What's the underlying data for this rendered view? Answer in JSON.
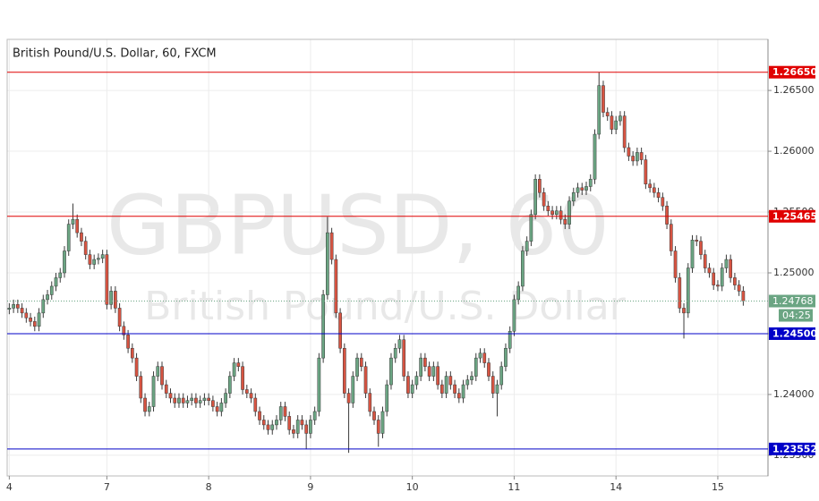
{
  "chart_data": {
    "type": "candlestick",
    "title": "British Pound/U.S. Dollar, 60, FXCM",
    "watermark": "GBPUSD, 60",
    "watermark_subtitle": "British Pound/U.S. Dollar",
    "categories": [
      "4",
      null,
      null,
      null,
      null,
      null,
      null,
      null,
      null,
      null,
      null,
      null,
      null,
      null,
      null,
      null,
      null,
      null,
      null,
      null,
      null,
      null,
      null,
      "7",
      null,
      null,
      null,
      null,
      null,
      null,
      null,
      null,
      null,
      null,
      null,
      null,
      null,
      null,
      null,
      null,
      null,
      null,
      null,
      null,
      null,
      null,
      null,
      "8",
      null,
      null,
      null,
      null,
      null,
      null,
      null,
      null,
      null,
      null,
      null,
      null,
      null,
      null,
      null,
      null,
      null,
      null,
      null,
      null,
      null,
      null,
      null,
      "9",
      null,
      null,
      null,
      null,
      null,
      null,
      null,
      null,
      null,
      null,
      null,
      null,
      null,
      null,
      null,
      null,
      null,
      null,
      null,
      null,
      null,
      null,
      null,
      "10",
      null,
      null,
      null,
      null,
      null,
      null,
      null,
      null,
      null,
      null,
      null,
      null,
      null,
      null,
      null,
      null,
      null,
      null,
      null,
      null,
      null,
      null,
      null,
      "11",
      null,
      null,
      null,
      null,
      null,
      null,
      null,
      null,
      null,
      null,
      null,
      null,
      null,
      null,
      null,
      null,
      null,
      null,
      null,
      null,
      null,
      null,
      null,
      "14",
      null,
      null,
      null,
      null,
      null,
      null,
      null,
      null,
      null,
      null,
      null,
      null,
      null,
      null,
      null,
      null,
      null,
      null,
      null,
      null,
      null,
      null,
      null,
      "15",
      null,
      null,
      null,
      null,
      null,
      null
    ],
    "open": [
      1.247,
      1.2471,
      1.2474,
      1.2471,
      1.2467,
      1.2463,
      1.246,
      1.2456,
      1.2467,
      1.2478,
      1.2482,
      1.2489,
      1.2496,
      1.25,
      1.2518,
      1.254,
      1.2544,
      1.2533,
      1.2526,
      1.2515,
      1.2507,
      1.2511,
      1.2512,
      1.2515,
      1.2474,
      1.2485,
      1.2471,
      1.2456,
      1.2449,
      1.2438,
      1.243,
      1.2415,
      1.2397,
      1.2386,
      1.239,
      1.2415,
      1.2423,
      1.2408,
      1.2401,
      1.2397,
      1.2393,
      1.2397,
      1.2393,
      1.2395,
      1.2397,
      1.2393,
      1.2395,
      1.2397,
      1.2395,
      1.239,
      1.2386,
      1.2393,
      1.2401,
      1.2415,
      1.2426,
      1.2423,
      1.2404,
      1.2401,
      1.2397,
      1.2386,
      1.2379,
      1.2375,
      1.2371,
      1.2375,
      1.2379,
      1.239,
      1.2382,
      1.2371,
      1.2368,
      1.2379,
      1.2375,
      1.2368,
      1.2379,
      1.2386,
      1.243,
      1.2482,
      1.2533,
      1.2511,
      1.2467,
      1.2438,
      1.2401,
      1.2393,
      1.2415,
      1.243,
      1.2423,
      1.2401,
      1.2386,
      1.2379,
      1.2368,
      1.2386,
      1.2408,
      1.243,
      1.2438,
      1.2445,
      1.2415,
      1.2401,
      1.2408,
      1.2415,
      1.243,
      1.2423,
      1.2415,
      1.2423,
      1.2408,
      1.2401,
      1.2415,
      1.2408,
      1.2401,
      1.2397,
      1.2408,
      1.2412,
      1.2415,
      1.243,
      1.2434,
      1.2426,
      1.2415,
      1.2401,
      1.2408,
      1.2423,
      1.2438,
      1.2452,
      1.2478,
      1.2489,
      1.2518,
      1.2526,
      1.2548,
      1.2577,
      1.2566,
      1.2555,
      1.2551,
      1.2548,
      1.2551,
      1.2544,
      1.254,
      1.2559,
      1.2566,
      1.257,
      1.2568,
      1.2571,
      1.2577,
      1.2614,
      1.2654,
      1.2632,
      1.2629,
      1.2618,
      1.2625,
      1.2629,
      1.2603,
      1.2596,
      1.2592,
      1.2599,
      1.2593,
      1.2573,
      1.257,
      1.2566,
      1.2562,
      1.2555,
      1.254,
      1.2518,
      1.2496,
      1.2471,
      1.2467,
      1.2504,
      1.2527,
      1.2526,
      1.2515,
      1.2504,
      1.25,
      1.249,
      1.2489,
      1.2504,
      1.2511,
      1.2496,
      1.249,
      1.2485
    ],
    "high": [
      1.2475,
      1.2478,
      1.2478,
      1.2475,
      1.2471,
      1.2467,
      1.2464,
      1.2471,
      1.2482,
      1.2486,
      1.2493,
      1.25,
      1.2504,
      1.2522,
      1.2544,
      1.2557,
      1.2548,
      1.2537,
      1.253,
      1.2519,
      1.2515,
      1.2516,
      1.2519,
      1.2519,
      1.2489,
      1.2489,
      1.2475,
      1.246,
      1.2453,
      1.2442,
      1.2434,
      1.2419,
      1.2401,
      1.2394,
      1.2419,
      1.2427,
      1.2427,
      1.2412,
      1.2405,
      1.2401,
      1.2401,
      1.2401,
      1.2399,
      1.2401,
      1.2401,
      1.2399,
      1.2401,
      1.2401,
      1.2399,
      1.2394,
      1.2397,
      1.2405,
      1.2419,
      1.243,
      1.243,
      1.2427,
      1.2408,
      1.2405,
      1.2401,
      1.239,
      1.2383,
      1.2379,
      1.2379,
      1.2383,
      1.2394,
      1.2394,
      1.2386,
      1.2375,
      1.2383,
      1.2383,
      1.2379,
      1.2383,
      1.239,
      1.2434,
      1.2486,
      1.2546,
      1.2537,
      1.2515,
      1.2471,
      1.2442,
      1.2405,
      1.2419,
      1.2434,
      1.2434,
      1.2427,
      1.2405,
      1.239,
      1.2383,
      1.239,
      1.2412,
      1.2434,
      1.2442,
      1.2449,
      1.2449,
      1.2419,
      1.2412,
      1.2419,
      1.2434,
      1.2434,
      1.2427,
      1.2427,
      1.2427,
      1.2412,
      1.2419,
      1.2419,
      1.2412,
      1.2405,
      1.2412,
      1.2416,
      1.2419,
      1.2434,
      1.2438,
      1.2438,
      1.243,
      1.2419,
      1.2412,
      1.2427,
      1.2442,
      1.2456,
      1.2482,
      1.2493,
      1.2522,
      1.253,
      1.2552,
      1.2581,
      1.2581,
      1.257,
      1.2559,
      1.2555,
      1.2555,
      1.2555,
      1.2548,
      1.2563,
      1.257,
      1.2574,
      1.2574,
      1.2575,
      1.2581,
      1.2618,
      1.2665,
      1.2658,
      1.2636,
      1.2633,
      1.2629,
      1.2633,
      1.2633,
      1.2607,
      1.26,
      1.2603,
      1.2603,
      1.2597,
      1.2577,
      1.2574,
      1.257,
      1.2566,
      1.2559,
      1.2544,
      1.2522,
      1.25,
      1.2475,
      1.2508,
      1.2531,
      1.2531,
      1.253,
      1.2519,
      1.2508,
      1.2504,
      1.2494,
      1.2508,
      1.2515,
      1.2515,
      1.25,
      1.2494,
      1.2489
    ],
    "low": [
      1.2466,
      1.2467,
      1.2467,
      1.2463,
      1.2459,
      1.2456,
      1.2452,
      1.2452,
      1.2463,
      1.2474,
      1.2478,
      1.2485,
      1.2492,
      1.2496,
      1.2514,
      1.2536,
      1.2529,
      1.2522,
      1.2511,
      1.2503,
      1.2503,
      1.2507,
      1.2508,
      1.247,
      1.247,
      1.2467,
      1.2452,
      1.2445,
      1.2434,
      1.2426,
      1.2411,
      1.2393,
      1.2382,
      1.2382,
      1.2386,
      1.2411,
      1.2404,
      1.2397,
      1.2393,
      1.2389,
      1.2389,
      1.2389,
      1.2389,
      1.2391,
      1.2389,
      1.2389,
      1.2391,
      1.2391,
      1.2386,
      1.2382,
      1.2382,
      1.2389,
      1.2397,
      1.2411,
      1.2419,
      1.24,
      1.2397,
      1.2393,
      1.2382,
      1.2375,
      1.2371,
      1.2367,
      1.2367,
      1.2371,
      1.2375,
      1.2378,
      1.2367,
      1.2364,
      1.2364,
      1.2371,
      1.2355,
      1.2364,
      1.2375,
      1.2382,
      1.2426,
      1.2478,
      1.2507,
      1.2463,
      1.2434,
      1.2397,
      1.2352,
      1.2389,
      1.2411,
      1.2419,
      1.2397,
      1.2382,
      1.2375,
      1.2357,
      1.2364,
      1.2382,
      1.2404,
      1.2426,
      1.2434,
      1.2411,
      1.2397,
      1.2397,
      1.2404,
      1.2411,
      1.2419,
      1.2411,
      1.2411,
      1.2404,
      1.2397,
      1.2397,
      1.2404,
      1.2397,
      1.2393,
      1.2393,
      1.2404,
      1.2408,
      1.2411,
      1.2426,
      1.2422,
      1.2411,
      1.2397,
      1.2382,
      1.2404,
      1.2419,
      1.2434,
      1.2448,
      1.2474,
      1.2485,
      1.2514,
      1.2522,
      1.2544,
      1.2562,
      1.2551,
      1.2547,
      1.2544,
      1.2544,
      1.254,
      1.2536,
      1.2536,
      1.2555,
      1.2562,
      1.2564,
      1.2564,
      1.2567,
      1.2573,
      1.261,
      1.2628,
      1.2625,
      1.2614,
      1.2614,
      1.2621,
      1.2599,
      1.2592,
      1.2588,
      1.2588,
      1.2589,
      1.2569,
      1.2566,
      1.2562,
      1.2558,
      1.2551,
      1.2536,
      1.2514,
      1.2492,
      1.2467,
      1.2446,
      1.2463,
      1.25,
      1.2522,
      1.2511,
      1.25,
      1.2496,
      1.2486,
      1.2485,
      1.2485,
      1.25,
      1.2492,
      1.2486,
      1.2481,
      1.2473
    ],
    "close": [
      1.2471,
      1.2474,
      1.2471,
      1.2467,
      1.2463,
      1.246,
      1.2456,
      1.2467,
      1.2478,
      1.2482,
      1.2489,
      1.2496,
      1.25,
      1.2518,
      1.254,
      1.2544,
      1.2533,
      1.2526,
      1.2515,
      1.2507,
      1.2511,
      1.2512,
      1.2515,
      1.2474,
      1.2485,
      1.2471,
      1.2456,
      1.2449,
      1.2438,
      1.243,
      1.2415,
      1.2397,
      1.2386,
      1.239,
      1.2415,
      1.2423,
      1.2408,
      1.2401,
      1.2397,
      1.2393,
      1.2397,
      1.2393,
      1.2395,
      1.2397,
      1.2393,
      1.2395,
      1.2397,
      1.2395,
      1.239,
      1.2386,
      1.2393,
      1.2401,
      1.2415,
      1.2426,
      1.2423,
      1.2404,
      1.2401,
      1.2397,
      1.2386,
      1.2379,
      1.2375,
      1.2371,
      1.2375,
      1.2379,
      1.239,
      1.2382,
      1.2371,
      1.2368,
      1.2379,
      1.2375,
      1.2368,
      1.2379,
      1.2386,
      1.243,
      1.2482,
      1.2533,
      1.2511,
      1.2467,
      1.2438,
      1.2401,
      1.2393,
      1.2415,
      1.243,
      1.2423,
      1.2401,
      1.2386,
      1.2379,
      1.2368,
      1.2386,
      1.2408,
      1.243,
      1.2438,
      1.2445,
      1.2415,
      1.2401,
      1.2408,
      1.2415,
      1.243,
      1.2423,
      1.2415,
      1.2423,
      1.2408,
      1.2401,
      1.2415,
      1.2408,
      1.2401,
      1.2397,
      1.2408,
      1.2412,
      1.2415,
      1.243,
      1.2434,
      1.2426,
      1.2415,
      1.2401,
      1.2408,
      1.2423,
      1.2438,
      1.2452,
      1.2478,
      1.2489,
      1.2518,
      1.2526,
      1.2548,
      1.2577,
      1.2566,
      1.2555,
      1.2551,
      1.2548,
      1.2551,
      1.2544,
      1.254,
      1.2559,
      1.2566,
      1.257,
      1.2568,
      1.2571,
      1.2577,
      1.2614,
      1.2654,
      1.2632,
      1.2629,
      1.2618,
      1.2625,
      1.2629,
      1.2603,
      1.2596,
      1.2592,
      1.2599,
      1.2593,
      1.2573,
      1.257,
      1.2566,
      1.2562,
      1.2555,
      1.254,
      1.2518,
      1.2496,
      1.2471,
      1.2467,
      1.2504,
      1.2527,
      1.2526,
      1.2515,
      1.2504,
      1.25,
      1.249,
      1.2489,
      1.2504,
      1.2511,
      1.2496,
      1.249,
      1.2485,
      1.2477
    ],
    "up_color": "#6ba583",
    "down_color": "#d75442",
    "wick_color": "#3a3a3a",
    "ylim": [
      1.2333,
      1.2692
    ],
    "yticks": [
      {
        "value": 1.235,
        "label": "1.23500"
      },
      {
        "value": 1.24,
        "label": "1.24000"
      },
      {
        "value": 1.245,
        "label": "1.24500"
      },
      {
        "value": 1.25,
        "label": "1.25000"
      },
      {
        "value": 1.255,
        "label": "1.25500"
      },
      {
        "value": 1.26,
        "label": "1.26000"
      },
      {
        "value": 1.265,
        "label": "1.26500"
      }
    ],
    "grid": true,
    "levels": [
      {
        "value": 1.2665,
        "label": "1.26650",
        "color": "#e00000"
      },
      {
        "value": 1.25465,
        "label": "1.25465",
        "color": "#e00000"
      },
      {
        "value": 1.245,
        "label": "1.24500",
        "color": "#0000c8"
      },
      {
        "value": 1.23552,
        "label": "1.23552",
        "color": "#0000c8"
      }
    ],
    "last_price": {
      "value": 1.24768,
      "label": "1.24768",
      "color": "#6ba583",
      "countdown": "04:25"
    }
  }
}
